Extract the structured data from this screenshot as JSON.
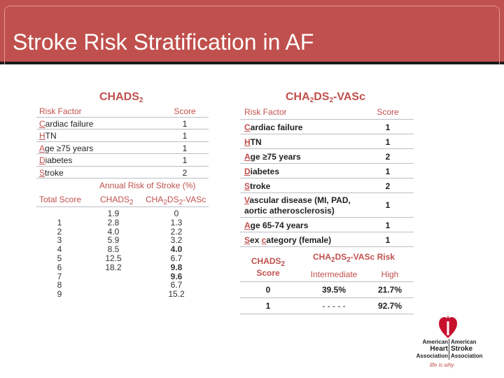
{
  "title": "Stroke Risk Stratification in AF",
  "chads": {
    "title_main": "CHADS",
    "title_sub": "2",
    "header": {
      "factor": "Risk Factor",
      "score": "Score"
    },
    "rows": [
      {
        "init": "C",
        "rest": "ardiac failure",
        "score": "1"
      },
      {
        "init": "H",
        "rest": "TN",
        "score": "1"
      },
      {
        "init": "A",
        "rest": "ge ≥75 years",
        "score": "1"
      },
      {
        "init": "D",
        "rest": "iabetes",
        "score": "1"
      },
      {
        "init": "S",
        "rest": "troke",
        "score": "2"
      }
    ],
    "annual_label": "Annual Risk of Stroke (%)",
    "total_score_label": "Total Score",
    "col_chads_main": "CHADS",
    "col_chads_sub": "2",
    "col_vasc_a": "CHA",
    "col_vasc_b": "2",
    "col_vasc_c": "DS",
    "col_vasc_d": "2",
    "col_vasc_e": "-VASc",
    "totals": [
      "",
      "1",
      "2",
      "3",
      "4",
      "5",
      "6",
      "7",
      "8",
      "9"
    ],
    "chads_values": [
      "1.9",
      "2.8",
      "4.0",
      "5.9",
      "8.5",
      "12.5",
      "18.2",
      "",
      "",
      ""
    ],
    "vasc_values": [
      "0",
      "1.3",
      "2.2",
      "3.2",
      "4.0",
      "6.7",
      "9.8",
      "9.6",
      "6.7",
      "15.2"
    ]
  },
  "vasc": {
    "title_a": "CHA",
    "title_b": "2",
    "title_c": "DS",
    "title_d": "2",
    "title_e": "-VASc",
    "header": {
      "factor": "Risk Factor",
      "score": "Score"
    },
    "rows": [
      {
        "init": "C",
        "rest": "ardiac failure",
        "score": "1"
      },
      {
        "init": "H",
        "rest": "TN",
        "score": "1"
      },
      {
        "init": "A",
        "rest": "ge ≥75 years",
        "score": "2"
      },
      {
        "init": "D",
        "rest": "iabetes",
        "score": "1"
      },
      {
        "init": "S",
        "rest": "troke",
        "score": "2"
      },
      {
        "init": "V",
        "rest": "ascular disease (MI, PAD,",
        "rest2": "aortic atherosclerosis)",
        "score": "1"
      },
      {
        "init": "A",
        "rest": "ge 65-74 years",
        "score": "1"
      },
      {
        "init": "S",
        "rest": "ex ",
        "init2": "c",
        "rest3": "ategory (female)",
        "score": "1"
      }
    ]
  },
  "risk_table": {
    "score_col_a": "CHADS",
    "score_col_b": "2",
    "score_col_c": "Score",
    "risk_title_a": "CHA",
    "risk_title_b": "2",
    "risk_title_c": "DS",
    "risk_title_d": "2",
    "risk_title_e": "-VASc Risk",
    "col_intermediate": "Intermediate",
    "col_high": "High",
    "rows": [
      {
        "score": "0",
        "intermediate": "39.5%",
        "high": "21.7%"
      },
      {
        "score": "1",
        "intermediate": "- - - - -",
        "high": "92.7%"
      }
    ]
  },
  "logo": {
    "left_1": "American",
    "left_2": "Heart",
    "left_3": "Association",
    "right_1": "American",
    "right_2": "Stroke",
    "right_3": "Association",
    "tagline": "life is why"
  },
  "colors": {
    "accent": "#c0504d",
    "rule": "#b9bec6",
    "text": "#1f1f1f"
  }
}
